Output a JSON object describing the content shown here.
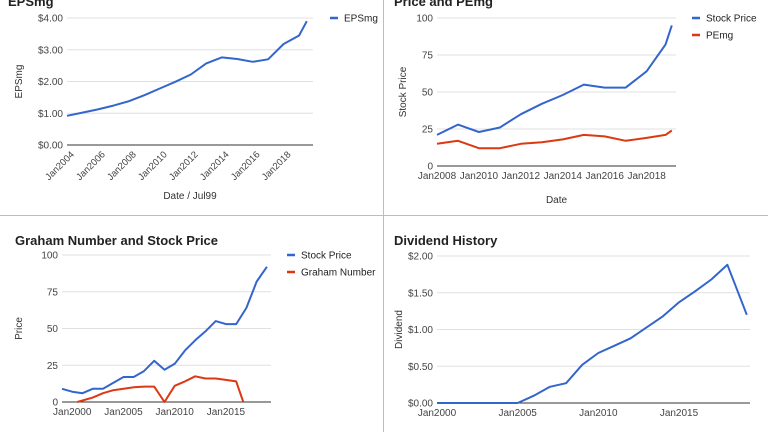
{
  "colors": {
    "blue": "#3366cc",
    "red": "#dc3912",
    "grid": "#e0e0e0",
    "axis": "#333333"
  },
  "chart_data": [
    {
      "id": "eps",
      "type": "line",
      "title": "EPSmg",
      "xlabel": "Date / Jul99",
      "ylabel": "EPSmg",
      "xlim": [
        2003.5,
        2019.4
      ],
      "ylim": [
        0,
        4
      ],
      "xticks": [
        2004,
        2006,
        2008,
        2010,
        2012,
        2014,
        2016,
        2018
      ],
      "xtick_labels": [
        "Jan2004",
        "Jan2006",
        "Jan2008",
        "Jan2010",
        "Jan2012",
        "Jan2014",
        "Jan2016",
        "Jan2018"
      ],
      "xtick_rotated": true,
      "yticks": [
        0,
        1,
        2,
        3,
        4
      ],
      "ytick_labels": [
        "$0.00",
        "$1.00",
        "$2.00",
        "$3.00",
        "$4.00"
      ],
      "legend": "top-right",
      "grid": true,
      "series": [
        {
          "name": "EPSmg",
          "color": "#3366cc",
          "x": [
            2003.5,
            2004.5,
            2005.5,
            2006.5,
            2007.5,
            2008.5,
            2009.5,
            2010.5,
            2011.5,
            2012.5,
            2013.5,
            2014.5,
            2015.5,
            2016.5,
            2017.5,
            2018.5,
            2019.0
          ],
          "y": [
            0.92,
            1.02,
            1.12,
            1.24,
            1.38,
            1.57,
            1.78,
            1.99,
            2.22,
            2.57,
            2.76,
            2.71,
            2.62,
            2.7,
            3.18,
            3.45,
            3.9
          ]
        }
      ]
    },
    {
      "id": "price_pe",
      "type": "line",
      "title": "Price and PEmg",
      "xlabel": "Date",
      "ylabel": "Stock Price",
      "xlim": [
        2008,
        2019.4
      ],
      "ylim": [
        0,
        100
      ],
      "xticks": [
        2008,
        2010,
        2012,
        2014,
        2016,
        2018
      ],
      "xtick_labels": [
        "Jan2008",
        "Jan2010",
        "Jan2012",
        "Jan2014",
        "Jan2016",
        "Jan2018"
      ],
      "yticks": [
        0,
        25,
        50,
        75,
        100
      ],
      "ytick_labels": [
        "0",
        "25",
        "50",
        "75",
        "100"
      ],
      "legend": "top-right",
      "grid": true,
      "series": [
        {
          "name": "Stock Price",
          "color": "#3366cc",
          "x": [
            2008,
            2009,
            2010,
            2011,
            2012,
            2013,
            2014,
            2015,
            2016,
            2017,
            2018,
            2018.9,
            2019.2
          ],
          "y": [
            21,
            28,
            23,
            26,
            35,
            42,
            48,
            55,
            53,
            53,
            64,
            82,
            95
          ]
        },
        {
          "name": "PEmg",
          "color": "#dc3912",
          "x": [
            2008,
            2009,
            2010,
            2011,
            2012,
            2013,
            2014,
            2015,
            2016,
            2017,
            2018,
            2018.9,
            2019.2
          ],
          "y": [
            15,
            17,
            12,
            12,
            15,
            16,
            18,
            21,
            20,
            17,
            19,
            21,
            24
          ]
        }
      ]
    },
    {
      "id": "graham",
      "type": "line",
      "title": "Graham Number and Stock Price",
      "xlabel": "",
      "ylabel": "Price",
      "xlim": [
        1999,
        2019.4
      ],
      "ylim": [
        0,
        100
      ],
      "xticks": [
        2000,
        2005,
        2010,
        2015
      ],
      "xtick_labels": [
        "Jan2000",
        "Jan2005",
        "Jan2010",
        "Jan2015"
      ],
      "yticks": [
        0,
        25,
        50,
        75,
        100
      ],
      "ytick_labels": [
        "0",
        "25",
        "50",
        "75",
        "100"
      ],
      "legend": "top-right",
      "grid": true,
      "series": [
        {
          "name": "Stock Price",
          "color": "#3366cc",
          "x": [
            1999,
            2000,
            2001,
            2002,
            2003,
            2004,
            2005,
            2006,
            2007,
            2008,
            2009,
            2010,
            2011,
            2012,
            2013,
            2014,
            2015,
            2016,
            2017,
            2018,
            2019
          ],
          "y": [
            9,
            7,
            6,
            9,
            9,
            13,
            17,
            17,
            21,
            28,
            22,
            26,
            35,
            42,
            48,
            55,
            53,
            53,
            64,
            82,
            92
          ]
        },
        {
          "name": "Graham Number",
          "color": "#dc3912",
          "x": [
            2000.5,
            2001,
            2002,
            2003,
            2004,
            2005,
            2006,
            2007,
            2008,
            2009,
            2010,
            2011,
            2012,
            2013,
            2014,
            2015,
            2016,
            2016.7
          ],
          "y": [
            0,
            1,
            3,
            6,
            8,
            9,
            10,
            10.5,
            10.5,
            0,
            11,
            14,
            17.5,
            16,
            16,
            15,
            14,
            0
          ]
        }
      ]
    },
    {
      "id": "dividend",
      "type": "line",
      "title": "Dividend History",
      "xlabel": "",
      "ylabel": "Dividend",
      "xlim": [
        2000,
        2019.4
      ],
      "ylim": [
        0,
        2
      ],
      "xticks": [
        2000,
        2005,
        2010,
        2015
      ],
      "xtick_labels": [
        "Jan2000",
        "Jan2005",
        "Jan2010",
        "Jan2015"
      ],
      "yticks": [
        0,
        0.5,
        1,
        1.5,
        2
      ],
      "ytick_labels": [
        "$0.00",
        "$0.50",
        "$1.00",
        "$1.50",
        "$2.00"
      ],
      "legend": "none",
      "grid": true,
      "series": [
        {
          "name": "",
          "color": "#3366cc",
          "x": [
            2000,
            2005,
            2006,
            2007,
            2008,
            2009,
            2010,
            2011,
            2012,
            2013,
            2014,
            2015,
            2016,
            2017,
            2018,
            2019.2
          ],
          "y": [
            0,
            0,
            0.1,
            0.22,
            0.27,
            0.52,
            0.68,
            0.78,
            0.88,
            1.03,
            1.18,
            1.37,
            1.52,
            1.68,
            1.88,
            1.2
          ]
        }
      ]
    }
  ]
}
